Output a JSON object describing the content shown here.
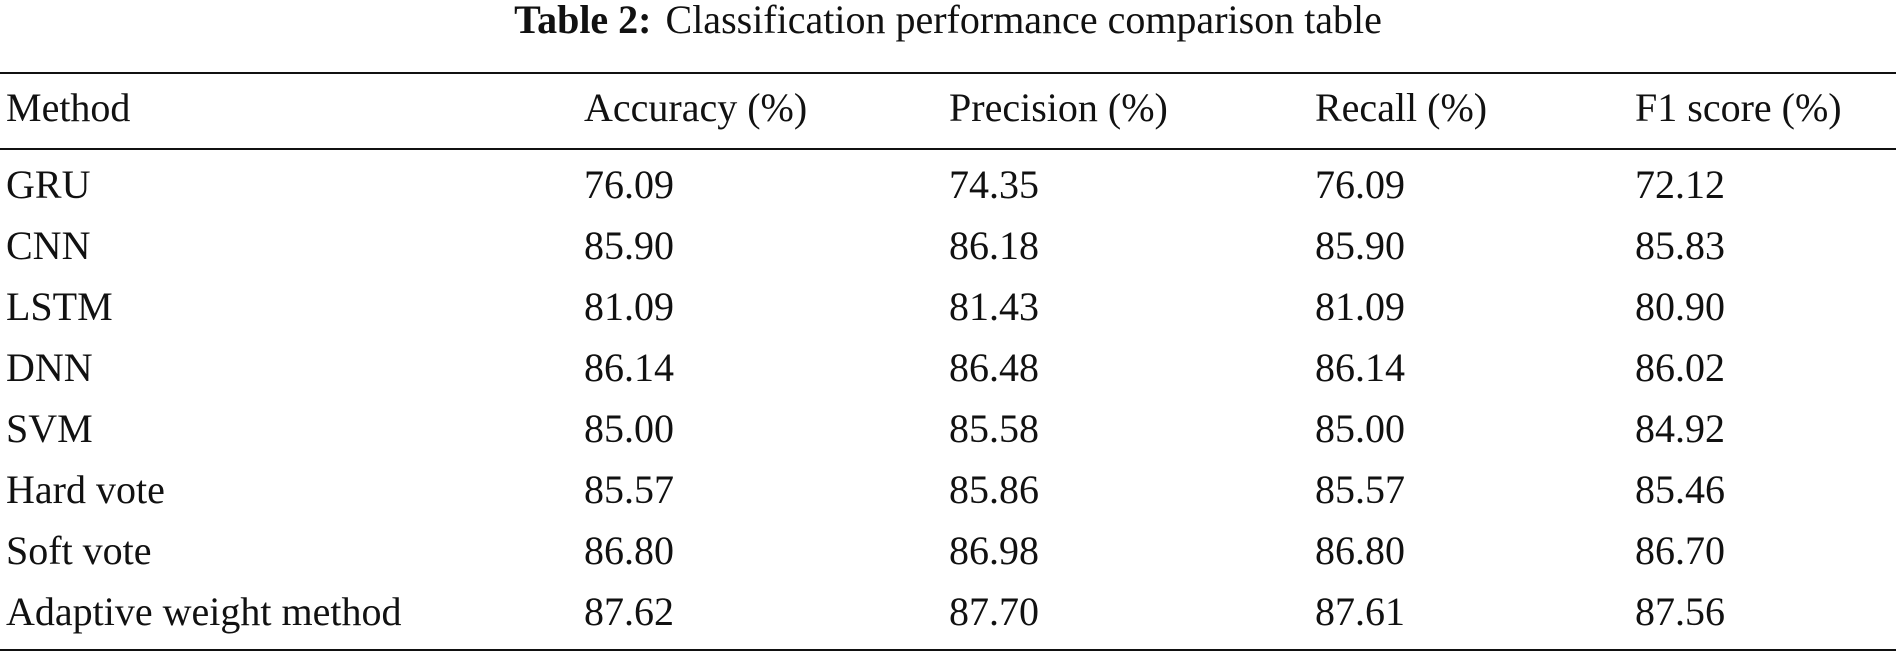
{
  "caption": {
    "label": "Table 2:",
    "text": "Classification performance comparison table"
  },
  "table": {
    "headers": [
      "Method",
      "Accuracy (%)",
      "Precision (%)",
      "Recall (%)",
      "F1 score (%)"
    ],
    "rows": [
      [
        "GRU",
        "76.09",
        "74.35",
        "76.09",
        "72.12"
      ],
      [
        "CNN",
        "85.90",
        "86.18",
        "85.90",
        "85.83"
      ],
      [
        "LSTM",
        "81.09",
        "81.43",
        "81.09",
        "80.90"
      ],
      [
        "DNN",
        "86.14",
        "86.48",
        "86.14",
        "86.02"
      ],
      [
        "SVM",
        "85.00",
        "85.58",
        "85.00",
        "84.92"
      ],
      [
        "Hard vote",
        "85.57",
        "85.86",
        "85.57",
        "85.46"
      ],
      [
        "Soft vote",
        "86.80",
        "86.98",
        "86.80",
        "86.70"
      ],
      [
        "Adaptive weight method",
        "87.62",
        "87.70",
        "87.61",
        "87.56"
      ]
    ]
  }
}
